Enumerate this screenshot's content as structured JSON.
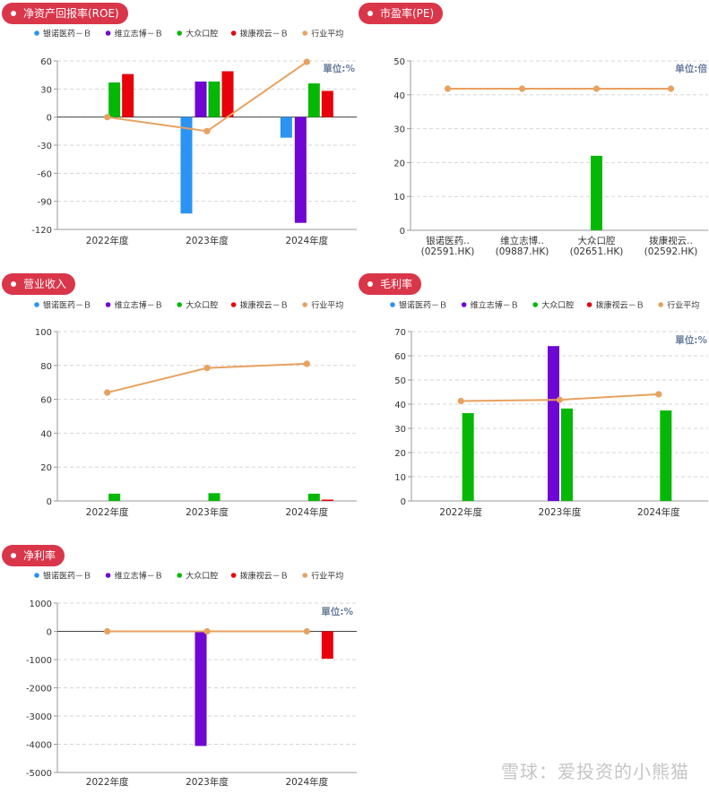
{
  "colors": {
    "series": [
      "#2b93f3",
      "#6f06d4",
      "#06b806",
      "#e8000b",
      "#e8a15f"
    ],
    "pill": "#d9364a"
  },
  "legend": [
    "银诺医药－Ｂ",
    "维立志博－Ｂ",
    "大众口腔",
    "拨康视云－Ｂ",
    "行业平均"
  ],
  "watermark": "雪球：爱投资的小熊猫",
  "chart_data": [
    {
      "id": "roe",
      "type": "bar",
      "title": "净资产回报率(ROE)",
      "unit": "單位:%",
      "categories": [
        "2022年度",
        "2023年度",
        "2024年度"
      ],
      "ylim": [
        -120,
        60
      ],
      "yticks": [
        60,
        30,
        0,
        -30,
        -60,
        -90,
        -120
      ],
      "grid": true,
      "legend": "top-left",
      "series": [
        {
          "name": "银诺医药－Ｂ",
          "values": [
            null,
            -103,
            -22
          ]
        },
        {
          "name": "维立志博－Ｂ",
          "values": [
            null,
            38,
            -113
          ]
        },
        {
          "name": "大众口腔",
          "values": [
            37,
            38,
            36
          ]
        },
        {
          "name": "拨康视云－Ｂ",
          "values": [
            46,
            49,
            28
          ]
        }
      ],
      "line": {
        "name": "行业平均",
        "values": [
          0,
          -15,
          59
        ]
      }
    },
    {
      "id": "pe",
      "type": "bar",
      "title": "市盈率(PE)",
      "unit": "单位:倍",
      "categories": [
        "银诺医药..\n(02591.HK)",
        "维立志博..\n(09887.HK)",
        "大众口腔\n(02651.HK)",
        "拨康视云..\n(02592.HK)"
      ],
      "ylim": [
        0,
        50
      ],
      "yticks": [
        50,
        40,
        30,
        20,
        10,
        0
      ],
      "grid": true,
      "series": [
        {
          "name": "市盈率",
          "values": [
            null,
            null,
            22,
            null
          ],
          "colorIndex": 2
        }
      ],
      "line": {
        "name": "行业平均",
        "values": [
          41.8,
          41.8,
          41.8,
          41.8
        ]
      }
    },
    {
      "id": "revenue",
      "type": "bar",
      "title": "营业收入",
      "categories": [
        "2022年度",
        "2023年度",
        "2024年度"
      ],
      "ylim": [
        0,
        100
      ],
      "yticks": [
        100,
        80,
        60,
        40,
        20,
        0
      ],
      "grid": true,
      "legend": "top-left",
      "series": [
        {
          "name": "银诺医药－Ｂ",
          "values": [
            null,
            null,
            null
          ]
        },
        {
          "name": "维立志博－Ｂ",
          "values": [
            null,
            null,
            null
          ]
        },
        {
          "name": "大众口腔",
          "values": [
            4.3,
            4.6,
            4.3
          ]
        },
        {
          "name": "拨康视云－Ｂ",
          "values": [
            null,
            null,
            0.8
          ]
        }
      ],
      "line": {
        "name": "行业平均",
        "values": [
          64,
          78.5,
          81
        ]
      }
    },
    {
      "id": "gross",
      "type": "bar",
      "title": "毛利率",
      "unit": "單位:%",
      "categories": [
        "2022年度",
        "2023年度",
        "2024年度"
      ],
      "ylim": [
        0,
        70
      ],
      "yticks": [
        70,
        60,
        50,
        40,
        30,
        20,
        10,
        0
      ],
      "grid": true,
      "legend": "top-left",
      "series": [
        {
          "name": "银诺医药－Ｂ",
          "values": [
            null,
            null,
            null
          ]
        },
        {
          "name": "维立志博－Ｂ",
          "values": [
            null,
            64,
            null
          ]
        },
        {
          "name": "大众口腔",
          "values": [
            36.3,
            38.2,
            37.4
          ]
        },
        {
          "name": "拨康视云－Ｂ",
          "values": [
            null,
            null,
            null
          ]
        }
      ],
      "line": {
        "name": "行业平均",
        "values": [
          41.3,
          41.8,
          44.1
        ]
      }
    },
    {
      "id": "net",
      "type": "bar",
      "title": "净利率",
      "unit": "單位:%",
      "categories": [
        "2022年度",
        "2023年度",
        "2024年度"
      ],
      "ylim": [
        -5000,
        1000
      ],
      "yticks": [
        1000,
        0,
        -1000,
        -2000,
        -3000,
        -4000,
        -5000
      ],
      "grid": true,
      "legend": "top-left",
      "series": [
        {
          "name": "银诺医药－Ｂ",
          "values": [
            null,
            null,
            null
          ]
        },
        {
          "name": "维立志博－Ｂ",
          "values": [
            null,
            -4060,
            null
          ]
        },
        {
          "name": "大众口腔",
          "values": [
            null,
            null,
            null
          ]
        },
        {
          "name": "拨康视云－Ｂ",
          "values": [
            null,
            null,
            -970
          ]
        }
      ],
      "line": {
        "name": "行业平均",
        "values": [
          0,
          0,
          0
        ]
      }
    }
  ]
}
